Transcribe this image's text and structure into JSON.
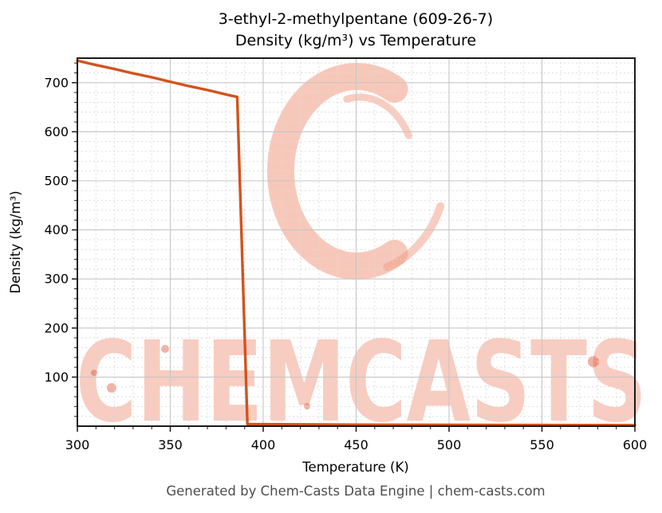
{
  "figure": {
    "title_line1": "3-ethyl-2-methylpentane (609-26-7)",
    "title_line2": "Density (kg/m³) vs Temperature",
    "footer": "Generated by Chem-Casts Data Engine | chem-casts.com",
    "watermark_text": "CHEMCASTS"
  },
  "colors": {
    "line": "#d2531c",
    "watermark": "#f19a82",
    "watermark_accent": "#de5238",
    "footer_text": "#4d4d4d",
    "axis": "#1a1a1a",
    "grid_major": "#c6c6c6",
    "grid_minor": "#dadada"
  },
  "chart_data": {
    "type": "line",
    "title": "3-ethyl-2-methylpentane (609-26-7)",
    "subtitle": "Density (kg/m³) vs Temperature",
    "xlabel": "Temperature (K)",
    "ylabel": "Density (kg/m³)",
    "xlim": [
      300,
      600
    ],
    "ylim": [
      0,
      750
    ],
    "x_ticks": [
      300,
      350,
      400,
      450,
      500,
      550,
      600
    ],
    "y_ticks": [
      100,
      200,
      300,
      400,
      500,
      600,
      700
    ],
    "x_minor_step": 10,
    "y_minor_step": 20,
    "grid": true,
    "legend": "none",
    "series": [
      {
        "name": "Density (kg/m³)",
        "color": "#d2531c",
        "points": [
          [
            300,
            745
          ],
          [
            310,
            736
          ],
          [
            320,
            728
          ],
          [
            330,
            719
          ],
          [
            340,
            711
          ],
          [
            350,
            702
          ],
          [
            360,
            693
          ],
          [
            370,
            685
          ],
          [
            380,
            676
          ],
          [
            386,
            671
          ],
          [
            391.5,
            4
          ],
          [
            420,
            3.5
          ],
          [
            450,
            3.0
          ],
          [
            480,
            2.7
          ],
          [
            510,
            2.5
          ],
          [
            540,
            2.3
          ],
          [
            570,
            2.1
          ],
          [
            600,
            2.0
          ]
        ]
      }
    ]
  }
}
